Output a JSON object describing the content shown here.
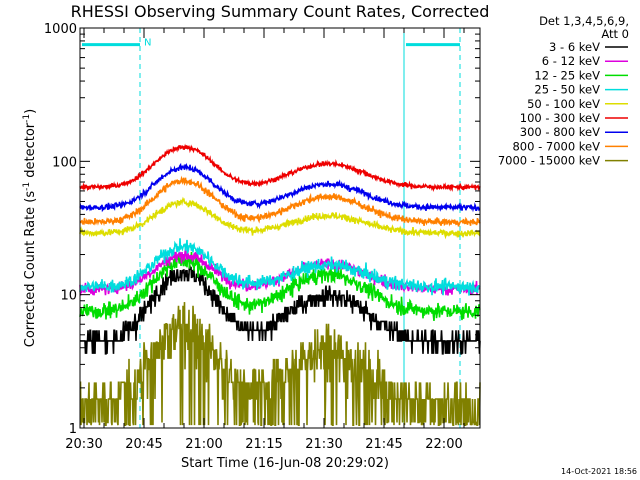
{
  "chart_data": {
    "type": "line",
    "title": "RHESSI Observing Summary Count Rates, Corrected",
    "xlabel": "Start Time (16-Jun-08 20:29:02)",
    "ylabel_main": "Corrected Count Rate (s",
    "ylabel_sup1": "-1",
    "ylabel_mid": " detector",
    "ylabel_sup2": "-1",
    "ylabel_end": ")",
    "yscale": "log",
    "ylim": [
      1,
      1000
    ],
    "xlim_minutes": [
      0,
      100
    ],
    "y_ticks": [
      {
        "value": 1,
        "label": "1"
      },
      {
        "value": 10,
        "label": "10"
      },
      {
        "value": 100,
        "label": "100"
      },
      {
        "value": 1000,
        "label": "1000"
      }
    ],
    "x_ticks": [
      {
        "minute": 1,
        "label": "20:30"
      },
      {
        "minute": 16,
        "label": "20:45"
      },
      {
        "minute": 31,
        "label": "21:00"
      },
      {
        "minute": 46,
        "label": "21:15"
      },
      {
        "minute": 61,
        "label": "21:30"
      },
      {
        "minute": 76,
        "label": "21:45"
      },
      {
        "minute": 91,
        "label": "22:00"
      }
    ],
    "legend_header": [
      "Det 1,3,4,5,6,9,",
      "Att 0"
    ],
    "legend_placement": "top-right, outside plot",
    "night_bar_label": "N",
    "night_intervals_minutes": [
      [
        0,
        15
      ],
      [
        81,
        95
      ]
    ],
    "night_bar_level": 750,
    "dashed_markers_minutes": [
      0,
      15,
      95
    ],
    "solid_markers_minutes": [
      81
    ],
    "series": [
      {
        "name": "3 - 6 keV",
        "color": "#000000",
        "base": 4.5,
        "amp1": 3.3,
        "amp2": 2.2,
        "noise": 0.12
      },
      {
        "name": "6 - 12 keV",
        "color": "#dd00dd",
        "base": 11.0,
        "amp1": 1.8,
        "amp2": 1.55,
        "noise": 0.05
      },
      {
        "name": "12 - 25 keV",
        "color": "#00dd00",
        "base": 7.5,
        "amp1": 2.4,
        "amp2": 1.9,
        "noise": 0.07
      },
      {
        "name": "25 - 50 keV",
        "color": "#00dddd",
        "base": 11.5,
        "amp1": 2.0,
        "amp2": 1.45,
        "noise": 0.06
      },
      {
        "name": "50 - 100 keV",
        "color": "#dddd00",
        "base": 29.0,
        "amp1": 1.7,
        "amp2": 1.35,
        "noise": 0.03
      },
      {
        "name": "100 - 300 keV",
        "color": "#ee0000",
        "base": 64.0,
        "amp1": 2.0,
        "amp2": 1.5,
        "noise": 0.02
      },
      {
        "name": "300 - 800 keV",
        "color": "#0000ee",
        "base": 45.0,
        "amp1": 2.0,
        "amp2": 1.5,
        "noise": 0.025
      },
      {
        "name": "800 - 7000 keV",
        "color": "#ff8000",
        "base": 35.0,
        "amp1": 2.05,
        "amp2": 1.55,
        "noise": 0.03
      },
      {
        "name": "7000 - 15000 keV",
        "color": "#808000",
        "base": 1.5,
        "amp1": 4.0,
        "amp2": 2.5,
        "noise": 0.25
      }
    ]
  },
  "timestamp": "14-Oct-2021 18:56"
}
